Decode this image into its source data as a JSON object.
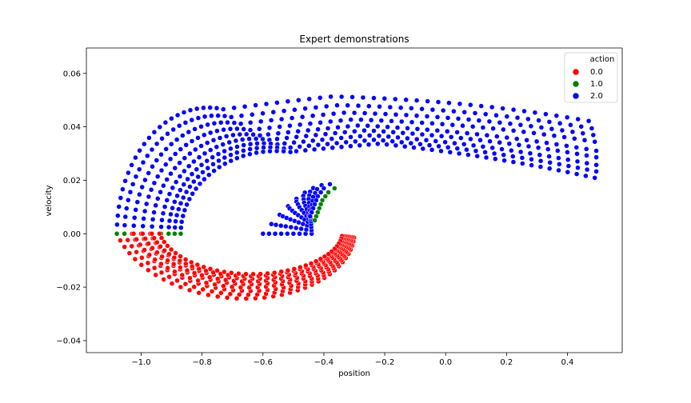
{
  "chart_data": {
    "type": "scatter",
    "title": "Expert demonstrations",
    "xlabel": "position",
    "ylabel": "velocity",
    "xlim": [
      -1.18,
      0.58
    ],
    "ylim": [
      -0.0445,
      0.0695
    ],
    "xticks": [
      -1.0,
      -0.8,
      -0.6,
      -0.4,
      -0.2,
      0.0,
      0.2,
      0.4
    ],
    "xtick_labels": [
      "−1.0",
      "−0.8",
      "−0.6",
      "−0.4",
      "−0.2",
      "0.0",
      "0.2",
      "0.4"
    ],
    "yticks": [
      -0.04,
      -0.02,
      0.0,
      0.02,
      0.04,
      0.06
    ],
    "ytick_labels": [
      "−0.04",
      "−0.02",
      "0.00",
      "0.02",
      "0.04",
      "0.06"
    ],
    "grid": false,
    "legend": {
      "title": "action",
      "placement": "top-right",
      "entries": [
        {
          "label": "0.0",
          "color": "#ff0000"
        },
        {
          "label": "1.0",
          "color": "#008000"
        },
        {
          "label": "2.0",
          "color": "#0000ff"
        }
      ]
    },
    "trajectories": [
      {
        "start": [
          -0.6,
          0.0
        ],
        "end": [
          0.47,
          0.0412
        ],
        "first_right": [
          -0.38,
          0.0185
        ],
        "center": [
          -0.5,
          0.001
        ],
        "neg_peak": -0.0308,
        "left_edge": -1.08,
        "top": 0.0555
      },
      {
        "start": [
          -0.58,
          0.0
        ],
        "end": [
          0.48,
          0.0385
        ],
        "first_right": [
          -0.4,
          0.017
        ],
        "center": [
          -0.5,
          0.001
        ],
        "neg_peak": -0.029,
        "left_edge": -1.055,
        "top": 0.052
      },
      {
        "start": [
          -0.56,
          0.0
        ],
        "end": [
          0.485,
          0.036
        ],
        "first_right": [
          -0.41,
          0.0155
        ],
        "center": [
          -0.5,
          0.001
        ],
        "neg_peak": -0.0272,
        "left_edge": -1.025,
        "top": 0.049
      },
      {
        "start": [
          -0.54,
          0.0
        ],
        "end": [
          0.49,
          0.0335
        ],
        "first_right": [
          -0.42,
          0.014
        ],
        "center": [
          -0.51,
          0.001
        ],
        "neg_peak": -0.0256,
        "left_edge": -0.995,
        "top": 0.0462
      },
      {
        "start": [
          -0.52,
          0.0
        ],
        "end": [
          0.495,
          0.03
        ],
        "first_right": [
          -0.425,
          0.0125
        ],
        "center": [
          -0.51,
          0.001
        ],
        "neg_peak": -0.024,
        "left_edge": -0.965,
        "top": 0.0438
      },
      {
        "start": [
          -0.5,
          0.0
        ],
        "end": [
          0.495,
          0.0275
        ],
        "first_right": [
          -0.43,
          0.011
        ],
        "center": [
          -0.52,
          0.001
        ],
        "neg_peak": -0.0227,
        "left_edge": -0.935,
        "top": 0.0418
      },
      {
        "start": [
          -0.48,
          0.0
        ],
        "end": [
          0.495,
          0.0245
        ],
        "first_right": [
          -0.435,
          0.0095
        ],
        "center": [
          -0.52,
          0.001
        ],
        "neg_peak": -0.0214,
        "left_edge": -0.91,
        "top": 0.0398
      },
      {
        "start": [
          -0.46,
          0.0
        ],
        "end": [
          0.495,
          0.022
        ],
        "first_right": [
          -0.44,
          0.008
        ],
        "center": [
          -0.53,
          0.001
        ],
        "neg_peak": -0.0202,
        "left_edge": -0.89,
        "top": 0.038
      },
      {
        "start": [
          -0.44,
          0.0
        ],
        "end": [
          0.49,
          0.0195
        ],
        "first_right": [
          -0.445,
          0.0065
        ],
        "center": [
          -0.53,
          0.001
        ],
        "neg_peak": -0.0192,
        "left_edge": -0.87,
        "top": 0.0364
      }
    ]
  }
}
